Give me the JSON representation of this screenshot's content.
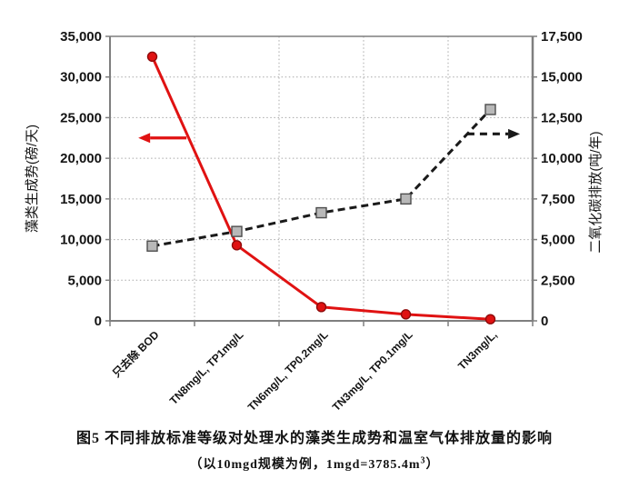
{
  "figure": {
    "caption_line1": "图5 不同排放标准等级对处理水的藻类生成势和温室气体排放量的影响",
    "caption_line2_prefix": "（以10mgd规模为例，1mgd=3785.4m",
    "caption_line2_sup": "3",
    "caption_line2_suffix": "）"
  },
  "chart_data": {
    "type": "line",
    "categories": [
      "只去除 BOD",
      "TN8mg/L, TP1mg/L",
      "TN6mg/L, TP0.2mg/L",
      "TN3mg/L, TP0.1mg/L",
      "TN3mg/L,"
    ],
    "series": [
      {
        "name": "藻类生成势",
        "axis": "left",
        "style": "solid",
        "marker": "circle",
        "color": "#e01212",
        "marker_fill": "#e01212",
        "marker_stroke": "#8f0a0a",
        "values": [
          32500,
          9300,
          1700,
          800,
          200
        ]
      },
      {
        "name": "二氧化碳排放",
        "axis": "right",
        "style": "dashed",
        "marker": "square",
        "color": "#1a1a1a",
        "marker_fill": "#b8b8b8",
        "marker_stroke": "#4d4d4d",
        "values": [
          4600,
          5500,
          6650,
          7500,
          13000
        ]
      }
    ],
    "axes": {
      "left": {
        "label": "藻类生成势(磅/天)",
        "min": 0,
        "max": 35000,
        "step": 5000
      },
      "right": {
        "label": "二氧化碳排放(吨/年)",
        "min": 0,
        "max": 17500,
        "step": 2500
      }
    },
    "grid": true,
    "legend": "none",
    "annotations": [
      {
        "type": "arrow",
        "direction": "left",
        "style": "solid",
        "color": "#e01212",
        "axis": "left",
        "y_value": 22500,
        "x_from_frac": 0.181,
        "x_to_frac": 0.067
      },
      {
        "type": "arrow",
        "direction": "right",
        "style": "dashed",
        "color": "#1a1a1a",
        "axis": "right",
        "y_value": 11500,
        "x_from_frac": 0.845,
        "x_to_frac": 0.97
      }
    ]
  }
}
